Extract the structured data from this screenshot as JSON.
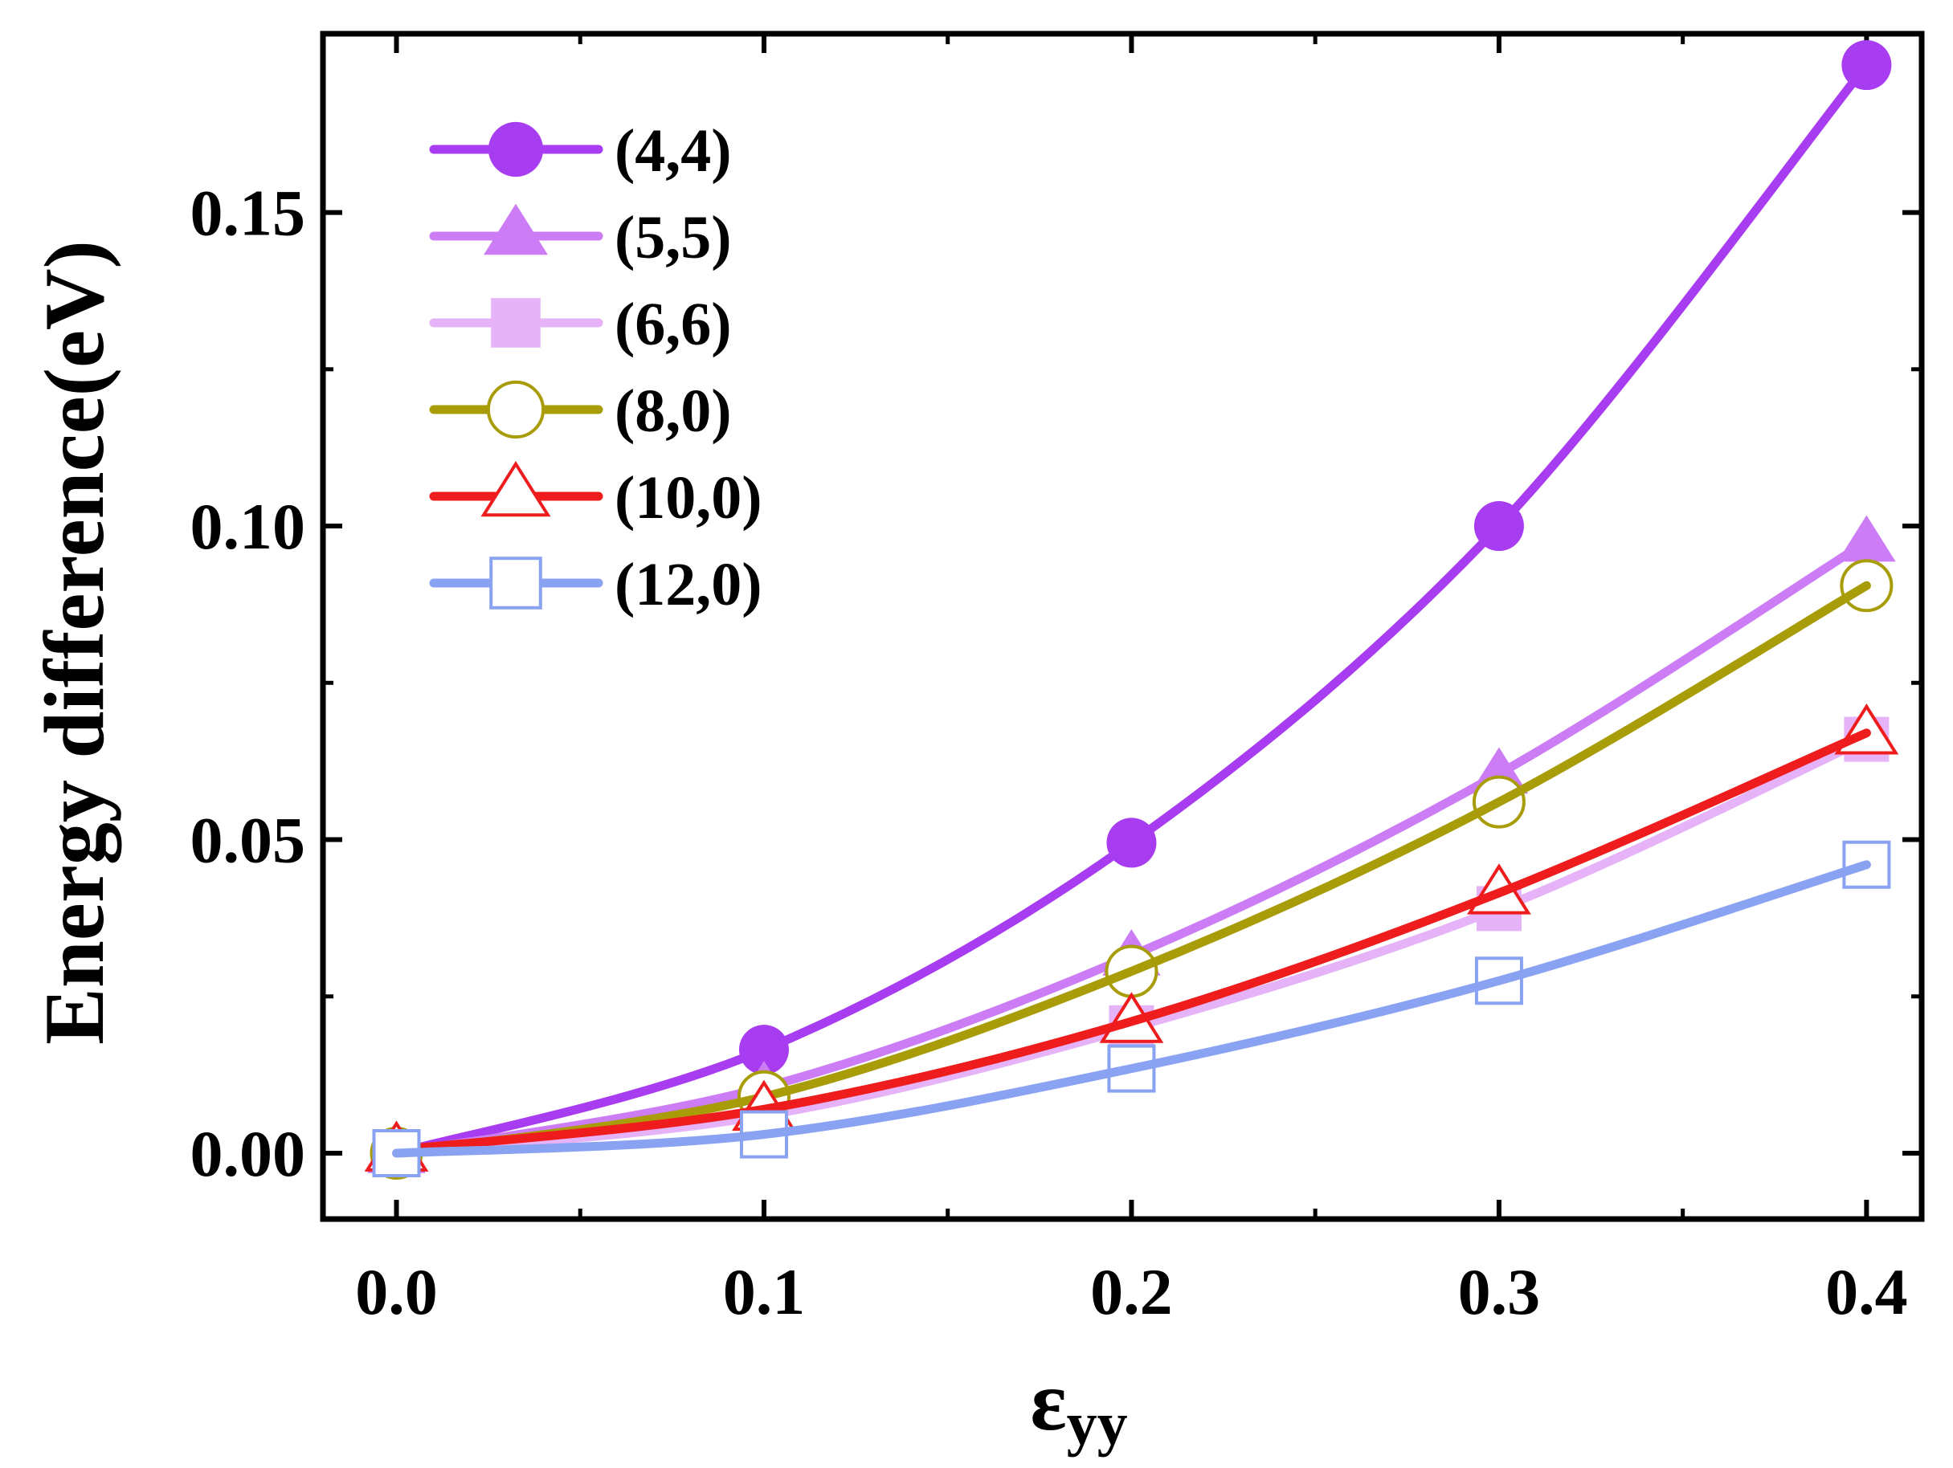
{
  "chart_data": {
    "type": "line",
    "title": "",
    "xlabel": "ε",
    "xlabel_subscript": "yy",
    "ylabel": "Energy difference(eV)",
    "xlim": [
      -0.02,
      0.415
    ],
    "ylim": [
      -0.0105,
      0.1785
    ],
    "x": [
      0.0,
      0.1,
      0.2,
      0.3,
      0.4
    ],
    "x_ticks": [
      0.0,
      0.1,
      0.2,
      0.3,
      0.4
    ],
    "x_tick_labels": [
      "0.0",
      "0.1",
      "0.2",
      "0.3",
      "0.4"
    ],
    "x_minor_ticks": [
      0.05,
      0.15,
      0.25,
      0.35
    ],
    "y_ticks": [
      0.0,
      0.05,
      0.1,
      0.15
    ],
    "y_tick_labels": [
      "0.00",
      "0.05",
      "0.10",
      "0.15"
    ],
    "y_minor_ticks": [
      0.025,
      0.075,
      0.125
    ],
    "grid": false,
    "legend_position": "top-left",
    "series": [
      {
        "name": "(4,4)",
        "color": "#a83cf0",
        "marker": "circle",
        "filled": true,
        "values": [
          0.0,
          0.0165,
          0.0495,
          0.1,
          0.1735
        ]
      },
      {
        "name": "(5,5)",
        "color": "#cc7cf4",
        "marker": "triangle",
        "filled": true,
        "values": [
          0.0,
          0.0105,
          0.0315,
          0.0605,
          0.0975
        ]
      },
      {
        "name": "(6,6)",
        "color": "#e6b2f8",
        "marker": "square",
        "filled": true,
        "values": [
          0.0,
          0.006,
          0.02,
          0.039,
          0.066
        ]
      },
      {
        "name": "(8,0)",
        "color": "#a89c08",
        "marker": "circle",
        "filled": false,
        "values": [
          0.0,
          0.009,
          0.029,
          0.056,
          0.0905
        ]
      },
      {
        "name": "(10,0)",
        "color": "#ee1c1c",
        "marker": "triangle",
        "filled": false,
        "values": [
          0.0005,
          0.007,
          0.021,
          0.0415,
          0.067
        ]
      },
      {
        "name": "(12,0)",
        "color": "#8aa2f2",
        "marker": "square",
        "filled": false,
        "values": [
          0.0,
          0.003,
          0.0135,
          0.0275,
          0.046
        ]
      }
    ]
  }
}
